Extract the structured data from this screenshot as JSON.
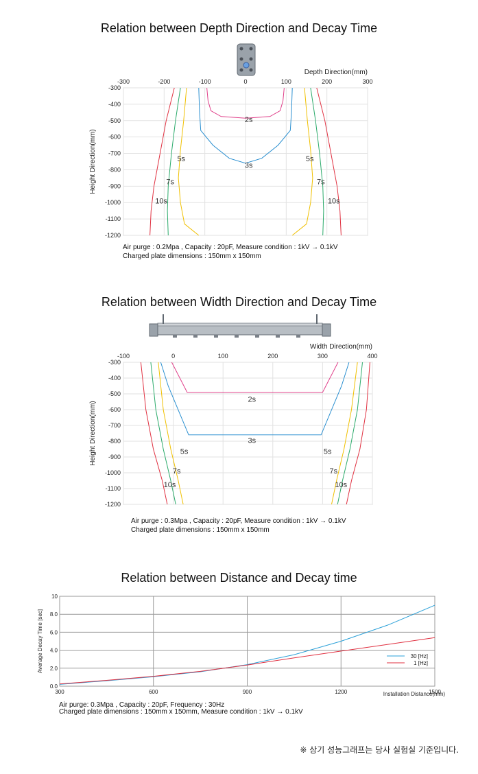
{
  "charts": {
    "depth": {
      "title": "Relation between Depth Direction and Decay Time",
      "notes": [
        "Air purge : 0.2Mpa , Capacity : 20pF, Measure condition : 1kV → 0.1kV",
        "Charged plate dimensions : 150mm x 150mm"
      ]
    },
    "width": {
      "title": "Relation between Width Direction and Decay Time",
      "notes": [
        "Air purge : 0.3Mpa , Capacity : 20pF, Measure condition : 1kV → 0.1kV",
        "Charged plate dimensions : 150mm x 150mm"
      ]
    },
    "distance": {
      "title": "Relation between Distance and Decay time",
      "notes": [
        "Air purge: 0.3Mpa , Capacity : 20pF,  Frequency : 30Hz",
        "Charged plate dimensions : 150mm x 150mm, Measure condition : 1kV → 0.1kV"
      ]
    }
  },
  "footer": "※ 상기 성능그래프는 당사 실험실 기준입니다.",
  "colors": {
    "2s": "#e0408a",
    "3s": "#2a8fd0",
    "5s": "#f0c000",
    "7s": "#2aaa6a",
    "10s": "#e03040",
    "grid": "#e2e2e2"
  },
  "chart_data": [
    {
      "type": "line",
      "title": "Relation between Depth Direction and Decay Time",
      "xlabel": "Depth Direction(mm)",
      "ylabel": "Height Direction(mm)",
      "xlim": [
        -300,
        300
      ],
      "ylim": [
        -1200,
        -300
      ],
      "xticks": [
        -300,
        -200,
        -100,
        0,
        100,
        200,
        300
      ],
      "yticks": [
        -300,
        -400,
        -500,
        -600,
        -700,
        -800,
        -900,
        -1000,
        -1100,
        -1200
      ],
      "series": [
        {
          "name": "2s",
          "color": "#e0408a",
          "closed_top": true,
          "points": [
            [
              -95,
              -300
            ],
            [
              -92,
              -380
            ],
            [
              -85,
              -440
            ],
            [
              -60,
              -475
            ],
            [
              0,
              -485
            ],
            [
              60,
              -475
            ],
            [
              85,
              -440
            ],
            [
              92,
              -380
            ],
            [
              95,
              -300
            ]
          ]
        },
        {
          "name": "3s",
          "color": "#2a8fd0",
          "closed_top": true,
          "points": [
            [
              -115,
              -300
            ],
            [
              -113,
              -450
            ],
            [
              -110,
              -560
            ],
            [
              -80,
              -650
            ],
            [
              -40,
              -730
            ],
            [
              0,
              -760
            ],
            [
              40,
              -730
            ],
            [
              80,
              -650
            ],
            [
              110,
              -560
            ],
            [
              113,
              -450
            ],
            [
              115,
              -300
            ]
          ]
        },
        {
          "name": "5s",
          "color": "#f0c000",
          "left": [
            [
              -145,
              -300
            ],
            [
              -152,
              -500
            ],
            [
              -160,
              -680
            ],
            [
              -165,
              -850
            ],
            [
              -160,
              -1000
            ],
            [
              -150,
              -1130
            ],
            [
              -115,
              -1200
            ]
          ],
          "right": [
            [
              145,
              -300
            ],
            [
              152,
              -500
            ],
            [
              160,
              -680
            ],
            [
              165,
              -850
            ],
            [
              160,
              -1000
            ],
            [
              150,
              -1130
            ],
            [
              115,
              -1200
            ]
          ]
        },
        {
          "name": "7s",
          "color": "#2aaa6a",
          "left": [
            [
              -160,
              -300
            ],
            [
              -172,
              -500
            ],
            [
              -182,
              -700
            ],
            [
              -190,
              -900
            ],
            [
              -192,
              -1050
            ],
            [
              -190,
              -1200
            ]
          ],
          "right": [
            [
              160,
              -300
            ],
            [
              172,
              -500
            ],
            [
              182,
              -700
            ],
            [
              190,
              -900
            ],
            [
              192,
              -1050
            ],
            [
              190,
              -1200
            ]
          ]
        },
        {
          "name": "10s",
          "color": "#e03040",
          "left": [
            [
              -175,
              -300
            ],
            [
              -195,
              -500
            ],
            [
              -210,
              -700
            ],
            [
              -225,
              -900
            ],
            [
              -232,
              -1050
            ],
            [
              -235,
              -1200
            ]
          ],
          "right": [
            [
              175,
              -300
            ],
            [
              195,
              -500
            ],
            [
              210,
              -700
            ],
            [
              225,
              -900
            ],
            [
              232,
              -1050
            ],
            [
              235,
              -1200
            ]
          ]
        }
      ],
      "labels": [
        {
          "text": "2s",
          "x": 8,
          "y": -510
        },
        {
          "text": "3s",
          "x": 8,
          "y": -788
        },
        {
          "text": "5s",
          "x": -158,
          "y": -748
        },
        {
          "text": "5s",
          "x": 158,
          "y": -748
        },
        {
          "text": "7s",
          "x": -185,
          "y": -888
        },
        {
          "text": "7s",
          "x": 185,
          "y": -888
        },
        {
          "text": "10s",
          "x": -207,
          "y": -1005
        },
        {
          "text": "10s",
          "x": 217,
          "y": -1005
        }
      ]
    },
    {
      "type": "line",
      "title": "Relation between Width Direction and Decay Time",
      "xlabel": "Width Direction(mm)",
      "ylabel": "Height Direction(mm)",
      "xlim": [
        -100,
        400
      ],
      "ylim": [
        -1200,
        -300
      ],
      "xticks": [
        -100,
        0,
        100,
        200,
        300,
        400
      ],
      "yticks": [
        -300,
        -400,
        -500,
        -600,
        -700,
        -800,
        -900,
        -1000,
        -1100,
        -1200
      ],
      "series": [
        {
          "name": "2s",
          "color": "#e0408a",
          "closed_top": true,
          "points": [
            [
              -3,
              -300
            ],
            [
              28,
              -490
            ],
            [
              300,
              -490
            ],
            [
              331,
              -300
            ]
          ]
        },
        {
          "name": "3s",
          "color": "#2a8fd0",
          "closed_top": true,
          "points": [
            [
              -25,
              -300
            ],
            [
              -10,
              -450
            ],
            [
              31,
              -760
            ],
            [
              297,
              -760
            ],
            [
              338,
              -450
            ],
            [
              353,
              -300
            ]
          ]
        },
        {
          "name": "5s",
          "color": "#f0c000",
          "left": [
            [
              -30,
              -300
            ],
            [
              -20,
              -600
            ],
            [
              -5,
              -850
            ],
            [
              10,
              -1050
            ],
            [
              20,
              -1200
            ]
          ],
          "right": [
            [
              370,
              -300
            ],
            [
              358,
              -600
            ],
            [
              343,
              -850
            ],
            [
              328,
              -1050
            ],
            [
              318,
              -1200
            ]
          ]
        },
        {
          "name": "7s",
          "color": "#2aaa6a",
          "left": [
            [
              -45,
              -300
            ],
            [
              -35,
              -600
            ],
            [
              -20,
              -850
            ],
            [
              -5,
              -1050
            ],
            [
              5,
              -1200
            ]
          ],
          "right": [
            [
              380,
              -300
            ],
            [
              370,
              -600
            ],
            [
              355,
              -850
            ],
            [
              340,
              -1050
            ],
            [
              330,
              -1200
            ]
          ]
        },
        {
          "name": "10s",
          "color": "#e03040",
          "left": [
            [
              -65,
              -300
            ],
            [
              -55,
              -600
            ],
            [
              -40,
              -850
            ],
            [
              -22,
              -1050
            ],
            [
              -12,
              -1200
            ]
          ],
          "right": [
            [
              395,
              -300
            ],
            [
              388,
              -600
            ],
            [
              375,
              -850
            ],
            [
              358,
              -1050
            ],
            [
              348,
              -1200
            ]
          ]
        }
      ],
      "labels": [
        {
          "text": "2s",
          "x": 158,
          "y": -550
        },
        {
          "text": "3s",
          "x": 158,
          "y": -810
        },
        {
          "text": "5s",
          "x": 22,
          "y": -880
        },
        {
          "text": "5s",
          "x": 310,
          "y": -880
        },
        {
          "text": "7s",
          "x": 7,
          "y": -1005
        },
        {
          "text": "7s",
          "x": 322,
          "y": -1005
        },
        {
          "text": "10s",
          "x": -7,
          "y": -1092
        },
        {
          "text": "10s",
          "x": 337,
          "y": -1092
        }
      ]
    },
    {
      "type": "line",
      "title": "Relation between Distance and Decay time",
      "xlabel": "Installation Distance(mm)",
      "ylabel": "Average Decay Time [sec]",
      "xlim": [
        300,
        1500
      ],
      "ylim": [
        0,
        10
      ],
      "xticks": [
        300,
        600,
        900,
        1200,
        1500
      ],
      "yticks": [
        0,
        2,
        4,
        6,
        8,
        10
      ],
      "ytick_labels": [
        "0.0",
        "2.0",
        "4.0",
        "6.0",
        "8.0",
        "10"
      ],
      "legend": "right",
      "series": [
        {
          "name": "30 [Hz]",
          "color": "#2aa0d8",
          "x": [
            300,
            450,
            600,
            750,
            900,
            1050,
            1200,
            1350,
            1500
          ],
          "y": [
            0.2,
            0.6,
            1.05,
            1.6,
            2.4,
            3.5,
            5.0,
            6.8,
            9.0
          ]
        },
        {
          "name": "1 [Hz]",
          "color": "#e03040",
          "x": [
            300,
            450,
            600,
            750,
            900,
            1050,
            1200,
            1350,
            1500
          ],
          "y": [
            0.25,
            0.65,
            1.1,
            1.65,
            2.35,
            3.15,
            3.9,
            4.65,
            5.4
          ]
        }
      ]
    }
  ]
}
